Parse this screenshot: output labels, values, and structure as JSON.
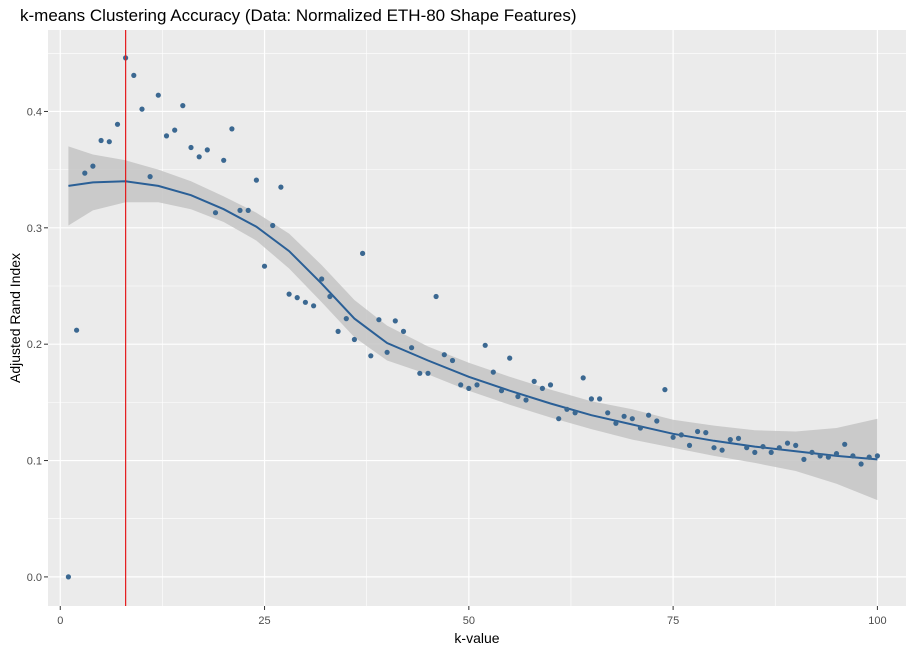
{
  "chart_data": {
    "type": "scatter",
    "title": "k-means Clustering Accuracy (Data: Normalized ETH-80 Shape Features)",
    "xlabel": "k-value",
    "ylabel": "Adjusted Rand Index",
    "xlim": [
      -1.5,
      103.5
    ],
    "ylim": [
      -0.025,
      0.47
    ],
    "xticks": [
      0,
      25,
      50,
      75,
      100
    ],
    "yticks": [
      0.0,
      0.1,
      0.2,
      0.3,
      0.4
    ],
    "ytick_labels": [
      "0.0",
      "0.1",
      "0.2",
      "0.3",
      "0.4"
    ],
    "grid": true,
    "vline": {
      "x": 8,
      "color": "#e41a1c"
    },
    "colors": {
      "points": "#3b6891",
      "smooth_line": "#2a5f96",
      "ribbon": "#c4c4c4",
      "panel": "#ebebeb"
    },
    "points": {
      "x": [
        1,
        2,
        3,
        4,
        5,
        6,
        7,
        8,
        9,
        10,
        11,
        12,
        13,
        14,
        15,
        16,
        17,
        18,
        19,
        20,
        21,
        22,
        23,
        24,
        25,
        26,
        27,
        28,
        29,
        30,
        31,
        32,
        33,
        34,
        35,
        36,
        37,
        38,
        39,
        40,
        41,
        42,
        43,
        44,
        45,
        46,
        47,
        48,
        49,
        50,
        51,
        52,
        53,
        54,
        55,
        56,
        57,
        58,
        59,
        60,
        61,
        62,
        63,
        64,
        65,
        66,
        67,
        68,
        69,
        70,
        71,
        72,
        73,
        74,
        75,
        76,
        77,
        78,
        79,
        80,
        81,
        82,
        83,
        84,
        85,
        86,
        87,
        88,
        89,
        90,
        91,
        92,
        93,
        94,
        95,
        96,
        97,
        98,
        99,
        100
      ],
      "y": [
        0.0,
        0.212,
        0.347,
        0.353,
        0.375,
        0.374,
        0.389,
        0.446,
        0.431,
        0.402,
        0.344,
        0.414,
        0.379,
        0.384,
        0.405,
        0.369,
        0.361,
        0.367,
        0.313,
        0.358,
        0.385,
        0.315,
        0.315,
        0.341,
        0.267,
        0.302,
        0.335,
        0.243,
        0.24,
        0.236,
        0.233,
        0.256,
        0.241,
        0.211,
        0.222,
        0.204,
        0.278,
        0.19,
        0.221,
        0.193,
        0.22,
        0.211,
        0.197,
        0.175,
        0.175,
        0.241,
        0.191,
        0.186,
        0.165,
        0.162,
        0.165,
        0.199,
        0.176,
        0.16,
        0.188,
        0.155,
        0.152,
        0.168,
        0.162,
        0.165,
        0.136,
        0.144,
        0.141,
        0.171,
        0.153,
        0.153,
        0.141,
        0.132,
        0.138,
        0.136,
        0.128,
        0.139,
        0.134,
        0.161,
        0.12,
        0.122,
        0.113,
        0.125,
        0.124,
        0.111,
        0.109,
        0.118,
        0.119,
        0.111,
        0.107,
        0.112,
        0.107,
        0.111,
        0.115,
        0.113,
        0.101,
        0.107,
        0.104,
        0.103,
        0.106,
        0.114,
        0.104,
        0.097,
        0.103,
        0.104
      ]
    },
    "smooth": {
      "x": [
        1,
        4,
        8,
        12,
        16,
        20,
        24,
        28,
        32,
        36,
        40,
        45,
        50,
        55,
        60,
        65,
        70,
        75,
        80,
        85,
        90,
        95,
        100
      ],
      "y": [
        0.336,
        0.339,
        0.34,
        0.336,
        0.328,
        0.316,
        0.301,
        0.28,
        0.252,
        0.222,
        0.201,
        0.186,
        0.172,
        0.16,
        0.149,
        0.139,
        0.131,
        0.123,
        0.117,
        0.112,
        0.108,
        0.104,
        0.101
      ],
      "lower": [
        0.302,
        0.315,
        0.322,
        0.322,
        0.316,
        0.305,
        0.289,
        0.265,
        0.236,
        0.206,
        0.186,
        0.174,
        0.16,
        0.148,
        0.137,
        0.127,
        0.118,
        0.111,
        0.104,
        0.098,
        0.091,
        0.08,
        0.066
      ],
      "upper": [
        0.37,
        0.363,
        0.358,
        0.35,
        0.34,
        0.327,
        0.313,
        0.295,
        0.268,
        0.238,
        0.216,
        0.198,
        0.184,
        0.172,
        0.161,
        0.151,
        0.144,
        0.135,
        0.13,
        0.126,
        0.125,
        0.128,
        0.136
      ]
    }
  }
}
